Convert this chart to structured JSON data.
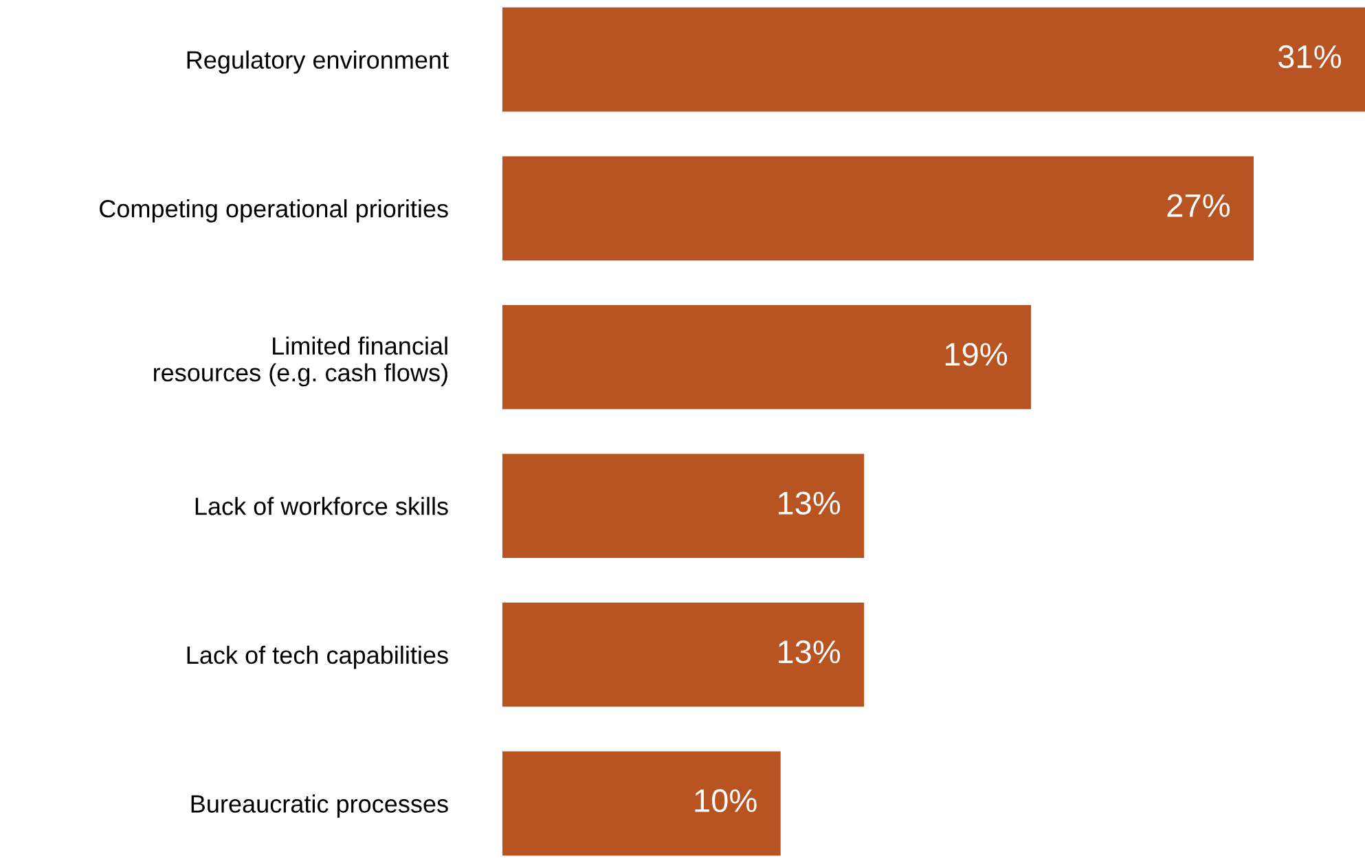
{
  "chart_data": {
    "type": "bar",
    "orientation": "horizontal",
    "categories": [
      "Regulatory environment",
      "Competing operational priorities",
      "Limited financial\nresources (e.g. cash flows)",
      "Lack of workforce skills",
      "Lack of tech capabilities",
      "Bureaucratic processes"
    ],
    "values": [
      31,
      27,
      19,
      13,
      13,
      10
    ],
    "value_labels": [
      "31%",
      "27%",
      "19%",
      "13%",
      "13%",
      "10%"
    ],
    "color": "#b85322"
  }
}
